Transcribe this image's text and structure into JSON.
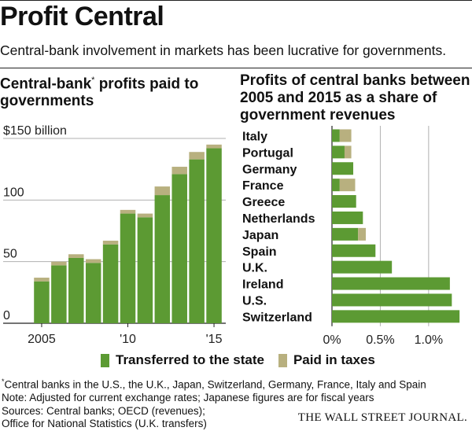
{
  "header": {
    "title": "Profit Central",
    "subtitle": "Central-bank involvement in markets has been lucrative for governments."
  },
  "left_chart": {
    "title_part1": "Central-bank",
    "title_asterisk": "*",
    "title_part2": " profits paid to governments"
  },
  "right_chart": {
    "title": "Profits of central banks between 2005 and 2015 as a share of government revenues"
  },
  "legend": {
    "transferred": "Transferred to the state",
    "paid": "Paid in taxes"
  },
  "notes": {
    "asterisk": "*",
    "footnote": "Central banks in the U.S., the U.K., Japan, Switzerland, Germany,  France, Italy and Spain",
    "note": "Note: Adjusted for current exchange rates; Japanese figures are for fiscal years",
    "sources1": "Sources: Central banks; OECD (revenues);",
    "sources2": "Office for National Statistics (U.K. transfers)"
  },
  "publisher": "THE WALL STREET JOURNAL.",
  "colors": {
    "transferred": "#5c9a33",
    "paid": "#b8b07f",
    "grid": "#b0b0b0",
    "axis": "#222222"
  },
  "chart_data": [
    {
      "type": "bar",
      "stacked": true,
      "title": "Central-bank* profits paid to governments",
      "ylabel": "$150 billion",
      "ylim": [
        0,
        150
      ],
      "yticks": [
        0,
        50,
        100,
        150
      ],
      "ytick_labels": [
        "0",
        "50",
        "100",
        "$150 billion"
      ],
      "categories": [
        "2005",
        "2006",
        "2007",
        "2008",
        "2009",
        "2010",
        "2011",
        "2012",
        "2013",
        "2014",
        "2015"
      ],
      "xtick_labels": [
        "2005",
        "",
        "",
        "",
        "",
        "'10",
        "",
        "",
        "",
        "",
        "'15"
      ],
      "series": [
        {
          "name": "Transferred to the state",
          "values": [
            34,
            47,
            53,
            49,
            64,
            89,
            86,
            104,
            121,
            133,
            142
          ]
        },
        {
          "name": "Paid in taxes",
          "values": [
            3,
            3,
            3,
            3,
            3,
            3,
            3,
            7,
            6,
            6,
            3
          ]
        }
      ]
    },
    {
      "type": "bar",
      "orientation": "horizontal",
      "stacked": true,
      "title": "Profits of central banks between 2005 and 2015 as a share of government revenues",
      "xlim": [
        0,
        1.4
      ],
      "xticks": [
        0,
        0.5,
        1.0
      ],
      "xtick_labels": [
        "0%",
        "0.5%",
        "1.0%"
      ],
      "categories": [
        "Italy",
        "Portugal",
        "Germany",
        "France",
        "Greece",
        "Netherlands",
        "Japan",
        "Spain",
        "U.K.",
        "Ireland",
        "U.S.",
        "Switzerland"
      ],
      "series": [
        {
          "name": "Transferred to the state",
          "values": [
            0.08,
            0.13,
            0.22,
            0.08,
            0.25,
            0.32,
            0.27,
            0.45,
            0.62,
            1.22,
            1.24,
            1.32
          ]
        },
        {
          "name": "Paid in taxes",
          "values": [
            0.12,
            0.07,
            0,
            0.16,
            0,
            0,
            0.08,
            0,
            0,
            0,
            0,
            0
          ]
        }
      ]
    }
  ]
}
